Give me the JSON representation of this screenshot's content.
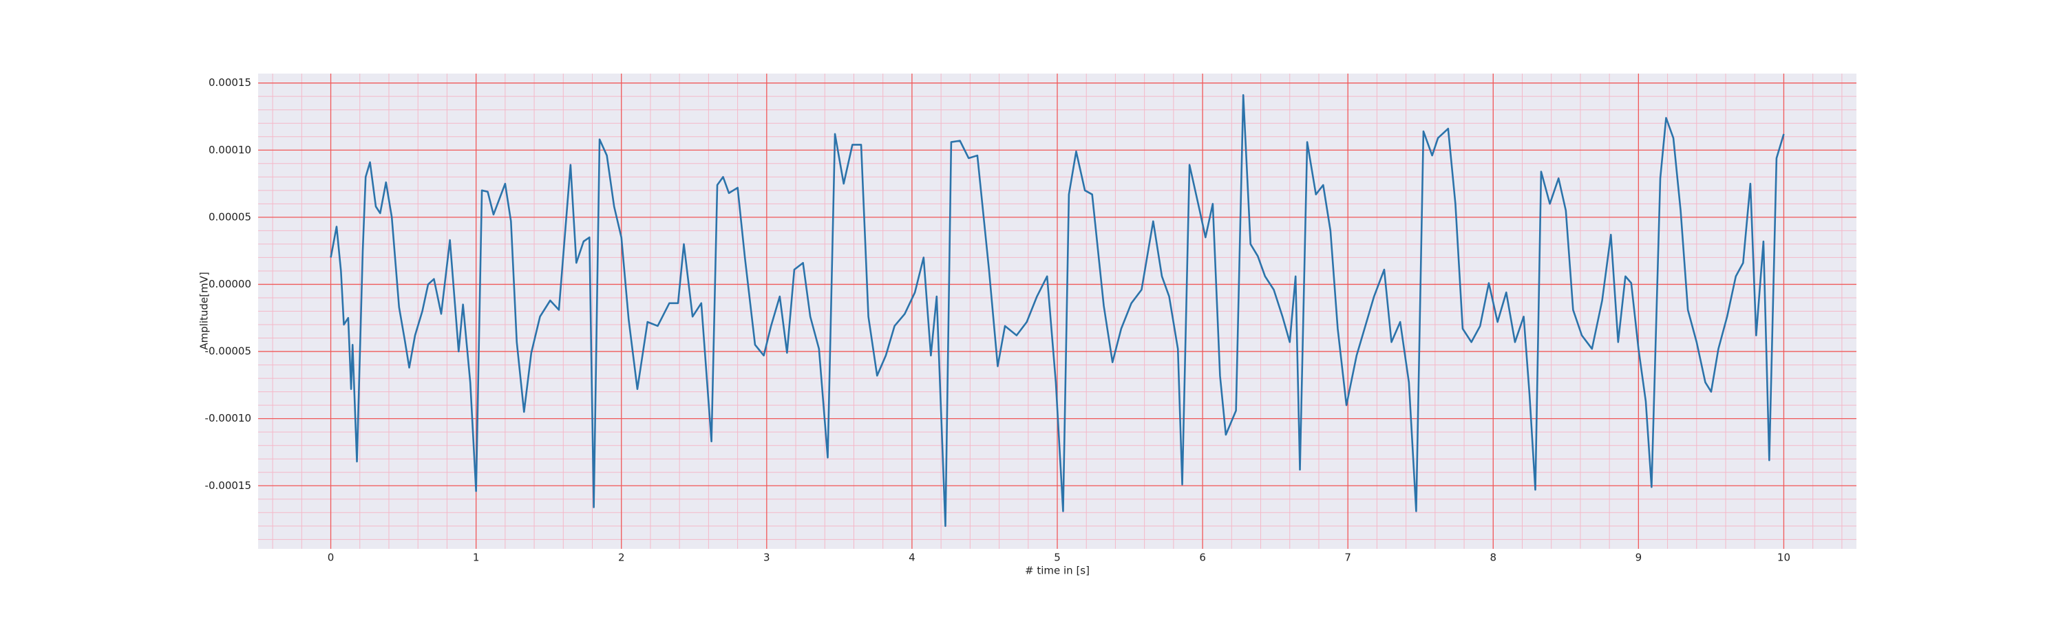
{
  "chart_data": {
    "type": "line",
    "xlabel": "# time in [s]",
    "ylabel": "Amplitude[mV]",
    "color": "#2b73aa",
    "xlim": [
      -0.5,
      10.5
    ],
    "xticks": [
      0,
      1,
      2,
      3,
      4,
      5,
      6,
      7,
      8,
      9,
      10
    ],
    "ylim": [
      -0.000197,
      0.000157
    ],
    "yticks": [
      {
        "value": -0.00015,
        "label": "-0.00015"
      },
      {
        "value": -0.0001,
        "label": "-0.00010"
      },
      {
        "value": -5e-05,
        "label": "-0.00005"
      },
      {
        "value": 0,
        "label": "0.00000"
      },
      {
        "value": 5e-05,
        "label": "0.00005"
      },
      {
        "value": 0.0001,
        "label": "0.00010"
      },
      {
        "value": 0.00015,
        "label": "0.00015"
      }
    ],
    "grid": true,
    "minor_grid": true,
    "x": [
      0,
      0.04,
      0.07,
      0.09,
      0.12,
      0.14,
      0.15,
      0.18,
      0.22,
      0.24,
      0.27,
      0.31,
      0.34,
      0.38,
      0.42,
      0.47,
      0.51,
      0.54,
      0.58,
      0.63,
      0.67,
      0.71,
      0.76,
      0.82,
      0.88,
      0.91,
      0.96,
      1.0,
      1.04,
      1.08,
      1.12,
      1.2,
      1.24,
      1.28,
      1.33,
      1.38,
      1.44,
      1.51,
      1.57,
      1.65,
      1.69,
      1.74,
      1.78,
      1.81,
      1.85,
      1.9,
      1.95,
      2.0,
      2.05,
      2.11,
      2.18,
      2.25,
      2.33,
      2.39,
      2.43,
      2.49,
      2.55,
      2.62,
      2.66,
      2.7,
      2.74,
      2.8,
      2.85,
      2.92,
      2.98,
      3.03,
      3.09,
      3.14,
      3.19,
      3.25,
      3.3,
      3.36,
      3.42,
      3.47,
      3.53,
      3.59,
      3.65,
      3.7,
      3.76,
      3.82,
      3.88,
      3.95,
      4.02,
      4.08,
      4.13,
      4.17,
      4.23,
      4.27,
      4.33,
      4.39,
      4.45,
      4.53,
      4.59,
      4.64,
      4.72,
      4.79,
      4.86,
      4.93,
      4.99,
      5.04,
      5.08,
      5.13,
      5.19,
      5.24,
      5.32,
      5.38,
      5.44,
      5.51,
      5.58,
      5.66,
      5.72,
      5.77,
      5.83,
      5.86,
      5.91,
      5.98,
      6.02,
      6.07,
      6.12,
      6.16,
      6.23,
      6.28,
      6.33,
      6.38,
      6.43,
      6.49,
      6.55,
      6.6,
      6.64,
      6.67,
      6.72,
      6.78,
      6.83,
      6.88,
      6.93,
      6.99,
      7.06,
      7.12,
      7.18,
      7.25,
      7.3,
      7.36,
      7.42,
      7.47,
      7.52,
      7.58,
      7.62,
      7.69,
      7.74,
      7.79,
      7.85,
      7.91,
      7.97,
      8.03,
      8.09,
      8.15,
      8.21,
      8.25,
      8.29,
      8.33,
      8.39,
      8.45,
      8.5,
      8.55,
      8.61,
      8.68,
      8.75,
      8.81,
      8.86,
      8.91,
      8.95,
      9.0,
      9.05,
      9.09,
      9.15,
      9.19,
      9.24,
      9.29,
      9.34,
      9.4,
      9.46,
      9.5,
      9.55,
      9.61,
      9.67,
      9.72,
      9.77,
      9.81,
      9.86,
      9.9,
      9.95,
      10.0
    ],
    "values": [
      2e-05,
      4.3e-05,
      1e-05,
      -3e-05,
      -2.5e-05,
      -7.8e-05,
      -4.5e-05,
      -0.000132,
      2.5e-05,
      8e-05,
      9.1e-05,
      5.8e-05,
      5.3e-05,
      7.6e-05,
      5e-05,
      -1.7e-05,
      -4.2e-05,
      -6.2e-05,
      -3.8e-05,
      -2e-05,
      0,
      4e-06,
      -2.2e-05,
      3.3e-05,
      -5e-05,
      -1.5e-05,
      -7.3e-05,
      -0.000154,
      7e-05,
      6.9e-05,
      5.2e-05,
      7.5e-05,
      4.7e-05,
      -4.3e-05,
      -9.5e-05,
      -5.1e-05,
      -2.4e-05,
      -1.2e-05,
      -1.9e-05,
      8.9e-05,
      1.6e-05,
      3.2e-05,
      3.5e-05,
      -0.000166,
      0.000108,
      9.6e-05,
      5.8e-05,
      3.5e-05,
      -2.6e-05,
      -7.8e-05,
      -2.8e-05,
      -3.1e-05,
      -1.4e-05,
      -1.4e-05,
      3e-05,
      -2.4e-05,
      -1.4e-05,
      -0.000117,
      7.4e-05,
      8e-05,
      6.8e-05,
      7.2e-05,
      2e-05,
      -4.5e-05,
      -5.3e-05,
      -3.1e-05,
      -9e-06,
      -5.1e-05,
      1.1e-05,
      1.6e-05,
      -2.4e-05,
      -4.8e-05,
      -0.000129,
      0.000112,
      7.5e-05,
      0.000104,
      0.000104,
      -2.4e-05,
      -6.8e-05,
      -5.3e-05,
      -3.1e-05,
      -2.2e-05,
      -6e-06,
      2e-05,
      -5.3e-05,
      -9e-06,
      -0.00018,
      0.000106,
      0.000107,
      9.4e-05,
      9.6e-05,
      1.1e-05,
      -6.1e-05,
      -3.1e-05,
      -3.8e-05,
      -2.8e-05,
      -9e-06,
      6e-06,
      -7.3e-05,
      -0.000169,
      6.7e-05,
      9.9e-05,
      7e-05,
      6.7e-05,
      -1.6e-05,
      -5.8e-05,
      -3.3e-05,
      -1.4e-05,
      -4e-06,
      4.7e-05,
      6e-06,
      -9e-06,
      -4.8e-05,
      -0.000149,
      8.9e-05,
      5.5e-05,
      3.5e-05,
      6e-05,
      -6.8e-05,
      -0.000112,
      -9.4e-05,
      0.000141,
      3e-05,
      2.1e-05,
      6e-06,
      -4e-06,
      -2.4e-05,
      -4.3e-05,
      6e-06,
      -0.000138,
      0.000106,
      6.7e-05,
      7.4e-05,
      4e-05,
      -3.3e-05,
      -9e-05,
      -5.3e-05,
      -3.1e-05,
      -9e-06,
      1.1e-05,
      -4.3e-05,
      -2.8e-05,
      -7.3e-05,
      -0.000169,
      0.000114,
      9.6e-05,
      0.000109,
      0.000116,
      6e-05,
      -3.3e-05,
      -4.3e-05,
      -3.1e-05,
      1e-06,
      -2.8e-05,
      -6e-06,
      -4.3e-05,
      -2.4e-05,
      -8.2e-05,
      -0.000153,
      8.4e-05,
      6e-05,
      7.9e-05,
      5.5e-05,
      -1.9e-05,
      -3.8e-05,
      -4.8e-05,
      -1.2e-05,
      3.7e-05,
      -4.3e-05,
      6e-06,
      1e-06,
      -4.8e-05,
      -8.7e-05,
      -0.000151,
      7.9e-05,
      0.000124,
      0.000109,
      5.5e-05,
      -1.9e-05,
      -4.3e-05,
      -7.3e-05,
      -8e-05,
      -4.8e-05,
      -2.4e-05,
      6e-06,
      1.6e-05,
      7.5e-05,
      -3.8e-05,
      3.2e-05,
      -0.000131,
      9.4e-05,
      0.000112
    ]
  }
}
